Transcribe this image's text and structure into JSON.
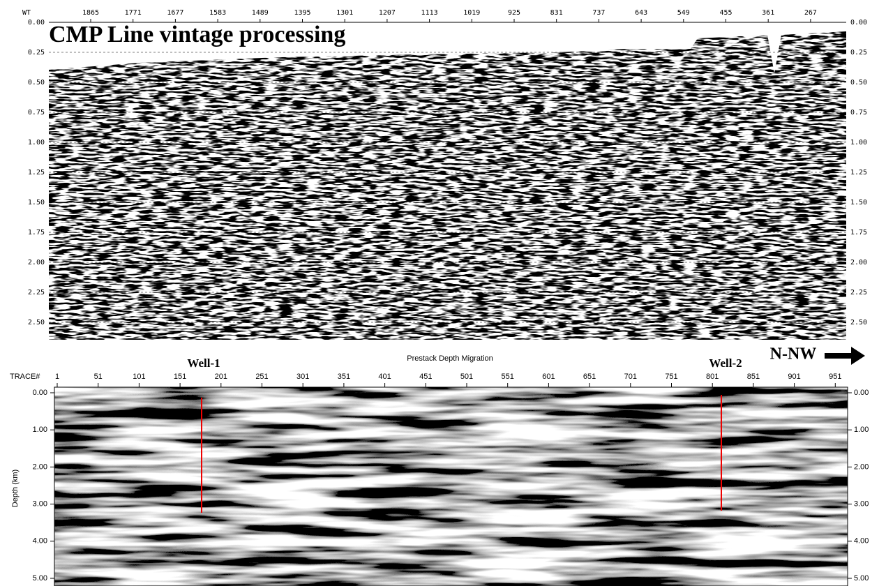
{
  "top_panel": {
    "title": "CMP Line vintage processing",
    "corner_label": "WT",
    "x_ticks": [
      "1865",
      "1771",
      "1677",
      "1583",
      "1489",
      "1395",
      "1301",
      "1207",
      "1113",
      "1019",
      "925",
      "831",
      "737",
      "643",
      "549",
      "455",
      "361",
      "267"
    ],
    "y_ticks": [
      "0.00",
      "0.25",
      "0.50",
      "0.75",
      "1.00",
      "1.25",
      "1.50",
      "1.75",
      "2.00",
      "2.25",
      "2.50"
    ]
  },
  "bottom_panel": {
    "title": "Prestack Depth Migration",
    "x_axis_label": "TRACE#",
    "x_ticks": [
      "1",
      "51",
      "101",
      "151",
      "201",
      "251",
      "301",
      "351",
      "401",
      "451",
      "501",
      "551",
      "601",
      "651",
      "701",
      "751",
      "801",
      "851",
      "901",
      "951"
    ],
    "y_axis_label": "Depth (km)",
    "y_ticks": [
      "0.00",
      "1.00",
      "2.00",
      "3.00",
      "4.00",
      "5.00"
    ],
    "wells": [
      {
        "label": "Well-1"
      },
      {
        "label": "Well-2"
      }
    ]
  },
  "direction_label": "N-NW"
}
